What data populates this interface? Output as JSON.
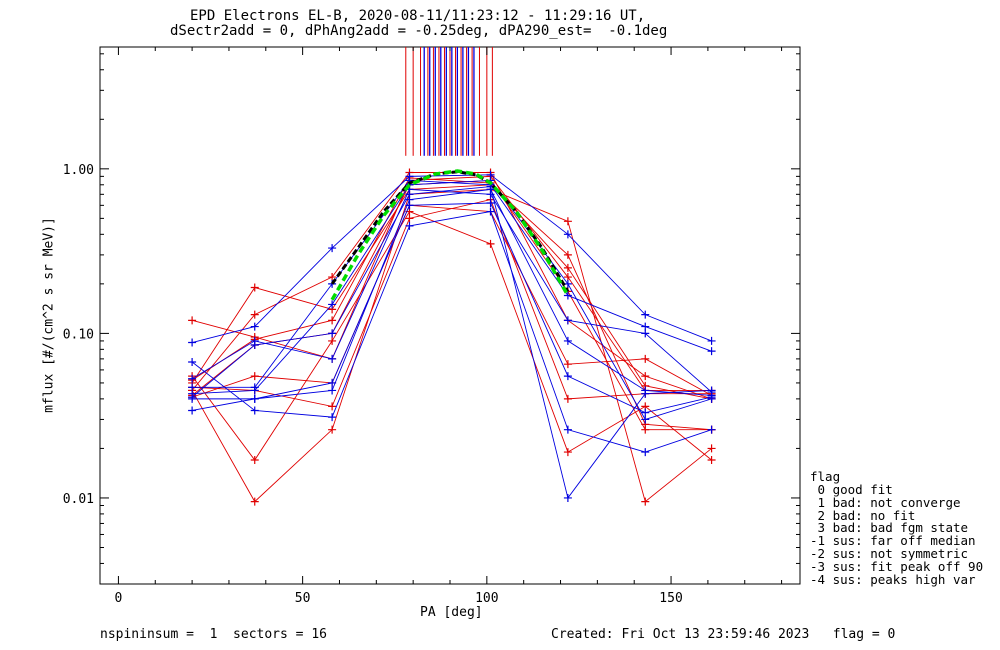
{
  "chart_data": {
    "type": "line",
    "title": "EPD Electrons EL-B, 2020-08-11/11:23:12 - 11:29:16 UT,",
    "subtitle": "dSectr2add = 0, dPhAng2add = -0.25deg, dPA290_est=  -0.1deg",
    "xlabel": "PA [deg]",
    "ylabel": "mflux [#/(cm^2 s sr MeV)]",
    "xlim": [
      -5,
      185
    ],
    "ylim": [
      0.003,
      5.5
    ],
    "yscale": "log",
    "x_ticks": [
      0,
      50,
      100,
      150
    ],
    "x_tick_labels": [
      "0",
      "50",
      "100",
      "150"
    ],
    "y_ticks": [
      0.01,
      0.1,
      1.0
    ],
    "y_tick_labels": [
      "0.01",
      "0.10",
      "1.00"
    ],
    "pa_bins": [
      20,
      37,
      58,
      79,
      101,
      122,
      143,
      161
    ],
    "colors": {
      "red": "#e00000",
      "blue": "#0000e0",
      "black": "#000000",
      "green": "#00dd00"
    },
    "series": [
      {
        "color": "red",
        "values": [
          0.12,
          0.095,
          0.07,
          0.85,
          0.9,
          0.22,
          0.045,
          0.045
        ]
      },
      {
        "color": "red",
        "values": [
          0.045,
          0.0095,
          0.026,
          0.7,
          0.75,
          0.48,
          0.0095,
          0.02
        ]
      },
      {
        "color": "red",
        "values": [
          0.055,
          0.017,
          0.09,
          0.55,
          0.35,
          0.019,
          0.036,
          0.017
        ]
      },
      {
        "color": "red",
        "values": [
          0.05,
          0.19,
          0.14,
          0.75,
          0.8,
          0.3,
          0.028,
          0.026
        ]
      },
      {
        "color": "red",
        "values": [
          0.045,
          0.13,
          0.22,
          0.95,
          0.95,
          0.12,
          0.055,
          0.04
        ]
      },
      {
        "color": "red",
        "values": [
          0.041,
          0.055,
          0.05,
          0.6,
          0.55,
          0.065,
          0.07,
          0.042
        ]
      },
      {
        "color": "red",
        "values": [
          0.042,
          0.085,
          0.1,
          0.8,
          0.85,
          0.18,
          0.026,
          0.026
        ]
      },
      {
        "color": "red",
        "values": [
          0.047,
          0.045,
          0.036,
          0.5,
          0.65,
          0.04,
          0.043,
          0.043
        ]
      },
      {
        "color": "red",
        "values": [
          0.052,
          0.092,
          0.12,
          0.88,
          0.82,
          0.25,
          0.048,
          0.04
        ]
      },
      {
        "color": "blue",
        "values": [
          0.088,
          0.11,
          0.33,
          0.9,
          0.92,
          0.4,
          0.13,
          0.09
        ]
      },
      {
        "color": "blue",
        "values": [
          0.067,
          0.034,
          0.031,
          0.45,
          0.55,
          0.026,
          0.019,
          0.026
        ]
      },
      {
        "color": "blue",
        "values": [
          0.047,
          0.047,
          0.2,
          0.85,
          0.8,
          0.17,
          0.11,
          0.078
        ]
      },
      {
        "color": "blue",
        "values": [
          0.041,
          0.085,
          0.1,
          0.7,
          0.78,
          0.01,
          0.043,
          0.045
        ]
      },
      {
        "color": "blue",
        "values": [
          0.034,
          0.04,
          0.05,
          0.6,
          0.62,
          0.055,
          0.033,
          0.041
        ]
      },
      {
        "color": "blue",
        "values": [
          0.043,
          0.045,
          0.15,
          0.8,
          0.85,
          0.2,
          0.03,
          0.04
        ]
      },
      {
        "color": "blue",
        "values": [
          0.053,
          0.09,
          0.07,
          0.75,
          0.7,
          0.12,
          0.1,
          0.044
        ]
      },
      {
        "color": "blue",
        "values": [
          0.04,
          0.04,
          0.045,
          0.65,
          0.75,
          0.09,
          0.045,
          0.042
        ]
      }
    ],
    "mean_curve": {
      "x": [
        58,
        65,
        72,
        79,
        86,
        92,
        97,
        101,
        108,
        115,
        122
      ],
      "values": [
        0.2,
        0.33,
        0.55,
        0.82,
        0.93,
        0.96,
        0.92,
        0.82,
        0.55,
        0.33,
        0.18
      ]
    },
    "fit_curve": {
      "x": [
        58,
        65,
        72,
        79,
        86,
        92,
        97,
        101,
        108,
        115,
        122
      ],
      "values": [
        0.16,
        0.3,
        0.52,
        0.8,
        0.93,
        0.97,
        0.93,
        0.82,
        0.55,
        0.32,
        0.17
      ]
    },
    "annotation_lines": {
      "red_x": [
        78,
        80,
        82,
        84,
        85.5,
        87,
        88.5,
        90,
        91.5,
        93,
        94.5,
        96,
        98,
        100,
        101.5
      ],
      "blue_x": [
        83,
        84.5,
        86,
        87.5,
        89,
        90.5,
        92,
        93.5,
        95,
        96.5
      ],
      "y_bottom": 1.2,
      "y_top": 5.5
    }
  },
  "legend": {
    "title": "flag",
    "entries": [
      " 0 good fit",
      " 1 bad: not converge",
      " 2 bad: no fit",
      " 3 bad: bad fgm state",
      "-1 sus: far off median",
      "-2 sus: not symmetric",
      "-3 sus: fit peak off 90",
      "-4 sus: peaks high var"
    ]
  },
  "footer": {
    "left": "nspininsum =  1  sectors = 16",
    "right": "Created: Fri Oct 13 23:59:46 2023   flag = 0"
  }
}
